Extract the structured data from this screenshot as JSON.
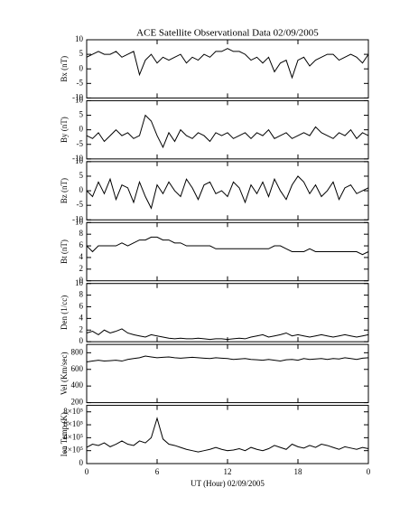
{
  "title": "ACE Satellite Observational Data   02/09/2005",
  "xlabel": "UT (Hour)   02/09/2005",
  "chart_data": [
    {
      "type": "line",
      "ylabel": "Bx (nT)",
      "ylim": [
        -10,
        10
      ],
      "yticks": [
        -10,
        -5,
        0,
        5,
        10
      ],
      "xlim": [
        0,
        24
      ],
      "x": [
        0,
        0.5,
        1,
        1.5,
        2,
        2.5,
        3,
        3.5,
        4,
        4.5,
        5,
        5.5,
        6,
        6.5,
        7,
        7.5,
        8,
        8.5,
        9,
        9.5,
        10,
        10.5,
        11,
        11.5,
        12,
        12.5,
        13,
        13.5,
        14,
        14.5,
        15,
        15.5,
        16,
        16.5,
        17,
        17.5,
        18,
        18.5,
        19,
        19.5,
        20,
        20.5,
        21,
        21.5,
        22,
        22.5,
        23,
        23.5,
        24
      ],
      "values": [
        4,
        5,
        6,
        5,
        5,
        6,
        4,
        5,
        6,
        -2,
        3,
        5,
        2,
        4,
        3,
        4,
        5,
        2,
        4,
        3,
        5,
        4,
        6,
        6,
        7,
        6,
        6,
        5,
        3,
        4,
        2,
        4,
        -1,
        2,
        3,
        -3,
        3,
        4,
        1,
        3,
        4,
        5,
        5,
        3,
        4,
        5,
        4,
        2,
        5
      ],
      "color": "#000000"
    },
    {
      "type": "line",
      "ylabel": "By (nT)",
      "ylim": [
        -10,
        10
      ],
      "yticks": [
        -10,
        -5,
        0,
        5,
        10
      ],
      "xlim": [
        0,
        24
      ],
      "x": [
        0,
        0.5,
        1,
        1.5,
        2,
        2.5,
        3,
        3.5,
        4,
        4.5,
        5,
        5.5,
        6,
        6.5,
        7,
        7.5,
        8,
        8.5,
        9,
        9.5,
        10,
        10.5,
        11,
        11.5,
        12,
        12.5,
        13,
        13.5,
        14,
        14.5,
        15,
        15.5,
        16,
        16.5,
        17,
        17.5,
        18,
        18.5,
        19,
        19.5,
        20,
        20.5,
        21,
        21.5,
        22,
        22.5,
        23,
        23.5,
        24
      ],
      "values": [
        -2,
        -3,
        -1,
        -4,
        -2,
        0,
        -2,
        -1,
        -3,
        -2,
        5,
        3,
        -2,
        -6,
        -1,
        -4,
        0,
        -2,
        -3,
        -1,
        -2,
        -4,
        -1,
        -2,
        -1,
        -3,
        -2,
        -1,
        -3,
        -1,
        -2,
        0,
        -3,
        -2,
        -1,
        -3,
        -2,
        -1,
        -2,
        1,
        -1,
        -2,
        -3,
        -1,
        -2,
        0,
        -3,
        -1,
        -2
      ],
      "color": "#000000"
    },
    {
      "type": "line",
      "ylabel": "Bz (nT)",
      "ylim": [
        -10,
        10
      ],
      "yticks": [
        -10,
        -5,
        0,
        5,
        10
      ],
      "xlim": [
        0,
        24
      ],
      "x": [
        0,
        0.5,
        1,
        1.5,
        2,
        2.5,
        3,
        3.5,
        4,
        4.5,
        5,
        5.5,
        6,
        6.5,
        7,
        7.5,
        8,
        8.5,
        9,
        9.5,
        10,
        10.5,
        11,
        11.5,
        12,
        12.5,
        13,
        13.5,
        14,
        14.5,
        15,
        15.5,
        16,
        16.5,
        17,
        17.5,
        18,
        18.5,
        19,
        19.5,
        20,
        20.5,
        21,
        21.5,
        22,
        22.5,
        23,
        23.5,
        24
      ],
      "values": [
        0,
        -2,
        3,
        -1,
        4,
        -3,
        2,
        1,
        -4,
        3,
        -2,
        -6,
        2,
        -1,
        3,
        0,
        -2,
        4,
        1,
        -3,
        2,
        3,
        -1,
        0,
        -2,
        3,
        1,
        -4,
        2,
        -1,
        3,
        -2,
        4,
        0,
        -3,
        2,
        5,
        3,
        -1,
        2,
        -2,
        0,
        3,
        -3,
        1,
        2,
        -1,
        0,
        1
      ],
      "color": "#000000"
    },
    {
      "type": "line",
      "ylabel": "Bt (nT)",
      "ylim": [
        0,
        10
      ],
      "yticks": [
        0,
        2,
        4,
        6,
        8,
        10
      ],
      "xlim": [
        0,
        24
      ],
      "x": [
        0,
        0.5,
        1,
        1.5,
        2,
        2.5,
        3,
        3.5,
        4,
        4.5,
        5,
        5.5,
        6,
        6.5,
        7,
        7.5,
        8,
        8.5,
        9,
        9.5,
        10,
        10.5,
        11,
        11.5,
        12,
        12.5,
        13,
        13.5,
        14,
        14.5,
        15,
        15.5,
        16,
        16.5,
        17,
        17.5,
        18,
        18.5,
        19,
        19.5,
        20,
        20.5,
        21,
        21.5,
        22,
        22.5,
        23,
        23.5,
        24
      ],
      "values": [
        6,
        5,
        6,
        6,
        6,
        6,
        6.5,
        6,
        6.5,
        7,
        7,
        7.5,
        7.5,
        7,
        7,
        6.5,
        6.5,
        6,
        6,
        6,
        6,
        6,
        5.5,
        5.5,
        5.5,
        5.5,
        5.5,
        5.5,
        5.5,
        5.5,
        5.5,
        5.5,
        6,
        6,
        5.5,
        5,
        5,
        5,
        5.5,
        5,
        5,
        5,
        5,
        5,
        5,
        5,
        5,
        4.5,
        5
      ],
      "color": "#000000"
    },
    {
      "type": "line",
      "ylabel": "Den (1/cc)",
      "ylim": [
        0,
        10
      ],
      "yticks": [
        0,
        2,
        4,
        6,
        8,
        10
      ],
      "xlim": [
        0,
        24
      ],
      "x": [
        0,
        0.5,
        1,
        1.5,
        2,
        2.5,
        3,
        3.5,
        4,
        4.5,
        5,
        5.5,
        6,
        6.5,
        7,
        7.5,
        8,
        8.5,
        9,
        9.5,
        10,
        10.5,
        11,
        11.5,
        12,
        12.5,
        13,
        13.5,
        14,
        14.5,
        15,
        15.5,
        16,
        16.5,
        17,
        17.5,
        18,
        18.5,
        19,
        19.5,
        20,
        20.5,
        21,
        21.5,
        22,
        22.5,
        23,
        23.5,
        24
      ],
      "values": [
        1.5,
        1.8,
        1.2,
        2,
        1.5,
        1.8,
        2.2,
        1.5,
        1.2,
        1,
        0.8,
        1.2,
        1,
        0.8,
        0.6,
        0.5,
        0.6,
        0.5,
        0.5,
        0.6,
        0.5,
        0.4,
        0.5,
        0.5,
        0.4,
        0.5,
        0.6,
        0.5,
        0.8,
        1,
        1.2,
        0.8,
        1,
        1.2,
        1.5,
        1,
        1.2,
        1,
        0.8,
        1,
        1.2,
        1,
        0.8,
        1,
        1.2,
        1,
        0.8,
        1,
        1.2
      ],
      "color": "#000000"
    },
    {
      "type": "line",
      "ylabel": "Vel (Km/sec)",
      "ylim": [
        200,
        900
      ],
      "yticks": [
        200,
        400,
        600,
        800
      ],
      "xlim": [
        0,
        24
      ],
      "x": [
        0,
        0.5,
        1,
        1.5,
        2,
        2.5,
        3,
        3.5,
        4,
        4.5,
        5,
        5.5,
        6,
        6.5,
        7,
        7.5,
        8,
        8.5,
        9,
        9.5,
        10,
        10.5,
        11,
        11.5,
        12,
        12.5,
        13,
        13.5,
        14,
        14.5,
        15,
        15.5,
        16,
        16.5,
        17,
        17.5,
        18,
        18.5,
        19,
        19.5,
        20,
        20.5,
        21,
        21.5,
        22,
        22.5,
        23,
        23.5,
        24
      ],
      "values": [
        690,
        700,
        710,
        700,
        705,
        710,
        700,
        720,
        730,
        740,
        760,
        750,
        740,
        745,
        750,
        740,
        735,
        740,
        745,
        740,
        735,
        730,
        740,
        735,
        730,
        720,
        725,
        730,
        720,
        715,
        710,
        720,
        710,
        700,
        715,
        720,
        710,
        730,
        720,
        725,
        730,
        720,
        730,
        725,
        740,
        730,
        720,
        735,
        740
      ],
      "color": "#000000"
    },
    {
      "type": "line",
      "ylabel": "Ion Temp (K)",
      "ylim": [
        0,
        900000
      ],
      "yticks": [
        0,
        {
          "value": 200000,
          "label": "2×10⁵"
        },
        {
          "value": 400000,
          "label": "4×10⁵"
        },
        {
          "value": 600000,
          "label": "6×10⁵"
        },
        {
          "value": 800000,
          "label": "8×10⁵"
        }
      ],
      "xlim": [
        0,
        24
      ],
      "xticks": [
        0,
        6,
        12,
        18,
        {
          "value": 24,
          "label": "0"
        }
      ],
      "x": [
        0,
        0.5,
        1,
        1.5,
        2,
        2.5,
        3,
        3.5,
        4,
        4.5,
        5,
        5.5,
        6,
        6.5,
        7,
        7.5,
        8,
        8.5,
        9,
        9.5,
        10,
        10.5,
        11,
        11.5,
        12,
        12.5,
        13,
        13.5,
        14,
        14.5,
        15,
        15.5,
        16,
        16.5,
        17,
        17.5,
        18,
        18.5,
        19,
        19.5,
        20,
        20.5,
        21,
        21.5,
        22,
        22.5,
        23,
        23.5,
        24
      ],
      "values": [
        250000,
        300000,
        280000,
        320000,
        260000,
        300000,
        350000,
        300000,
        280000,
        350000,
        320000,
        400000,
        700000,
        380000,
        300000,
        280000,
        250000,
        220000,
        200000,
        180000,
        200000,
        220000,
        250000,
        220000,
        200000,
        210000,
        230000,
        200000,
        250000,
        220000,
        200000,
        230000,
        280000,
        250000,
        220000,
        300000,
        260000,
        240000,
        280000,
        250000,
        300000,
        280000,
        250000,
        220000,
        260000,
        240000,
        220000,
        250000,
        230000
      ],
      "color": "#000000"
    }
  ]
}
